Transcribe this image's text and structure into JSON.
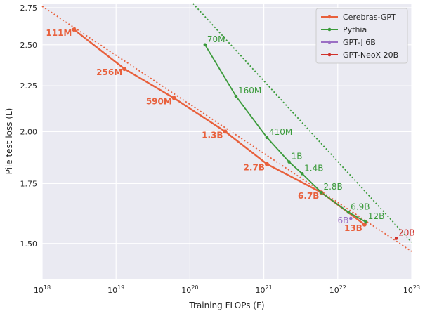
{
  "chart_data": {
    "type": "line",
    "xlabel": "Training FLOPs (F)",
    "ylabel": "Pile test loss (L)",
    "xscale": "log",
    "yscale": "log",
    "xlim": [
      1e+18,
      1e+23
    ],
    "ylim": [
      1.37,
      2.78
    ],
    "xticks": [
      1e+18,
      1e+19,
      1e+20,
      1e+21,
      1e+22,
      1e+23
    ],
    "xtick_labels": [
      {
        "base": "10",
        "exp": "18"
      },
      {
        "base": "10",
        "exp": "19"
      },
      {
        "base": "10",
        "exp": "20"
      },
      {
        "base": "10",
        "exp": "21"
      },
      {
        "base": "10",
        "exp": "22"
      },
      {
        "base": "10",
        "exp": "23"
      }
    ],
    "yticks": [
      1.5,
      1.75,
      2.0,
      2.25,
      2.5,
      2.75
    ],
    "ytick_labels": [
      "1.50",
      "1.75",
      "2.00",
      "2.25",
      "2.50",
      "2.75"
    ],
    "grid": true,
    "legend_position": "top-right",
    "series": [
      {
        "name": "Cerebras-GPT",
        "color": "#e8603c",
        "label_bold": true,
        "points": [
          {
            "x": 2.7e+18,
            "y": 2.6,
            "label": "111M"
          },
          {
            "x": 1.3e+19,
            "y": 2.35,
            "label": "256M"
          },
          {
            "x": 6.1e+19,
            "y": 2.18,
            "label": "590M"
          },
          {
            "x": 3e+20,
            "y": 2.0,
            "label": "1.3B"
          },
          {
            "x": 1.1e+21,
            "y": 1.84,
            "label": "2.7B"
          },
          {
            "x": 6e+21,
            "y": 1.71,
            "label": "6.7B"
          },
          {
            "x": 2.3e+22,
            "y": 1.575,
            "label": "13B"
          }
        ],
        "fit": {
          "x0": 1e+18,
          "y0": 2.76,
          "x1": 1e+23,
          "y1": 1.47
        }
      },
      {
        "name": "Pythia",
        "color": "#3a9a3a",
        "label_bold": false,
        "points": [
          {
            "x": 1.6e+20,
            "y": 2.5,
            "label": "70M"
          },
          {
            "x": 4.2e+20,
            "y": 2.19,
            "label": "160M"
          },
          {
            "x": 1.1e+21,
            "y": 1.97,
            "label": "410M"
          },
          {
            "x": 2.2e+21,
            "y": 1.85,
            "label": "1B"
          },
          {
            "x": 3.3e+21,
            "y": 1.795,
            "label": "1.4B"
          },
          {
            "x": 6e+21,
            "y": 1.71,
            "label": "2.8B"
          },
          {
            "x": 1.4e+22,
            "y": 1.625,
            "label": "6.9B"
          },
          {
            "x": 2.4e+22,
            "y": 1.585,
            "label": "12B"
          }
        ],
        "fit": {
          "x0": 1.1e+20,
          "y0": 2.78,
          "x1": 1e+23,
          "y1": 1.505
        }
      },
      {
        "name": "GPT-J 6B",
        "color": "#9b6fc4",
        "label_bold": false,
        "points": [
          {
            "x": 1.5e+22,
            "y": 1.6,
            "label": "6B"
          }
        ]
      },
      {
        "name": "GPT-NeoX 20B",
        "color": "#d0302a",
        "label_bold": false,
        "points": [
          {
            "x": 6.2e+22,
            "y": 1.52,
            "label": "20B"
          }
        ]
      }
    ]
  }
}
